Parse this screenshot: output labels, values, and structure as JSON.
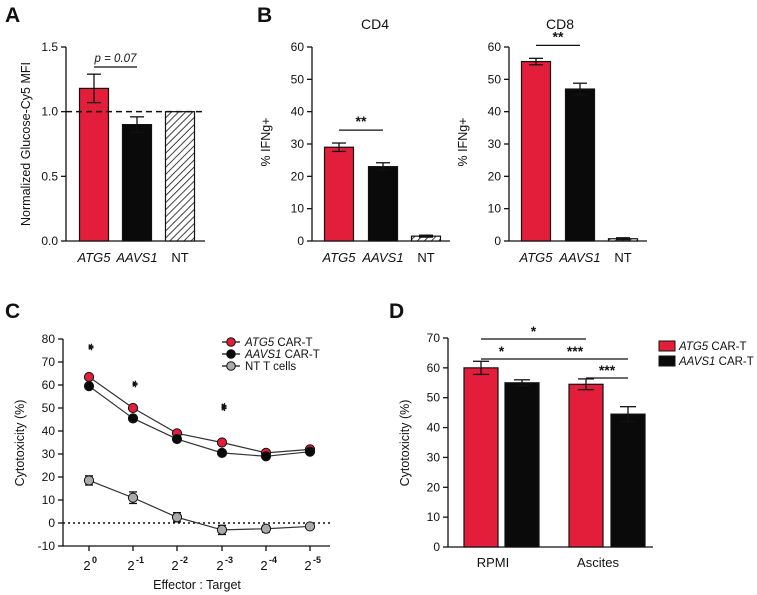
{
  "colors": {
    "atg5": "#e31e3b",
    "aavs1": "#0a0a0a",
    "nt": "#aaaaaa",
    "axis": "#111111"
  },
  "chart_data": [
    {
      "panel": "A",
      "type": "bar",
      "ylabel": "Normalized Glucose-Cy5 MFI",
      "ylim": [
        0.0,
        1.5
      ],
      "yticks": [
        "0.0",
        "0.5",
        "1.0",
        "1.5"
      ],
      "categories": [
        "ATG5",
        "AAVS1",
        "NT"
      ],
      "values": [
        1.18,
        0.9,
        1.0
      ],
      "errors": [
        0.11,
        0.06,
        0.0
      ],
      "reference_line": 1.0,
      "annotation": "p = 0.07"
    },
    {
      "panel": "B",
      "title": "CD4",
      "type": "bar",
      "ylabel": "% IFNg+",
      "ylim": [
        0,
        60
      ],
      "yticks": [
        "0",
        "10",
        "20",
        "30",
        "40",
        "50",
        "60"
      ],
      "categories": [
        "ATG5",
        "AAVS1",
        "NT"
      ],
      "values": [
        29.0,
        23.0,
        1.5
      ],
      "errors": [
        1.3,
        1.2,
        0.3
      ],
      "significance": "**"
    },
    {
      "panel": "B",
      "title": "CD8",
      "type": "bar",
      "ylabel": "% IFNg+",
      "ylim": [
        0,
        60
      ],
      "yticks": [
        "0",
        "10",
        "20",
        "30",
        "40",
        "50",
        "60"
      ],
      "categories": [
        "ATG5",
        "AAVS1",
        "NT"
      ],
      "values": [
        55.5,
        47.0,
        0.7
      ],
      "errors": [
        1.0,
        1.8,
        0.3
      ],
      "significance": "**"
    },
    {
      "panel": "C",
      "type": "line",
      "xlabel": "Effector : Target",
      "ylabel": "Cytotoxicity (%)",
      "ylim": [
        -10,
        80
      ],
      "yticks": [
        "-10",
        "0",
        "10",
        "20",
        "30",
        "40",
        "50",
        "60",
        "70",
        "80"
      ],
      "x_base": "2",
      "x_exponents": [
        "0",
        "-1",
        "-2",
        "-3",
        "-4",
        "-5"
      ],
      "reference_line": 0,
      "series": [
        {
          "name": "ATG5",
          "suffix": " CAR-T",
          "values": [
            63.5,
            50.0,
            39.0,
            35.0,
            30.5,
            32.0
          ],
          "errors": [
            1.0,
            1.0,
            1.0,
            1.0,
            1.0,
            1.0
          ]
        },
        {
          "name": "AAVS1",
          "suffix": " CAR-T",
          "values": [
            59.5,
            45.5,
            36.5,
            30.5,
            29.0,
            31.0
          ],
          "errors": [
            1.0,
            1.0,
            1.0,
            1.0,
            1.0,
            1.0
          ]
        },
        {
          "name": "NT T cells",
          "suffix": "",
          "values": [
            18.5,
            11.0,
            2.5,
            -3.0,
            -2.5,
            -1.5
          ],
          "errors": [
            2.0,
            2.5,
            2.0,
            2.0,
            1.5,
            1.0
          ]
        }
      ],
      "significance": [
        {
          "x_index": 0,
          "label": "**"
        },
        {
          "x_index": 1,
          "label": "**"
        },
        {
          "x_index": 3,
          "label": "***"
        }
      ]
    },
    {
      "panel": "D",
      "type": "bar",
      "ylabel": "Cytotoxicity (%)",
      "ylim": [
        0,
        70
      ],
      "yticks": [
        "0",
        "10",
        "20",
        "30",
        "40",
        "50",
        "60",
        "70"
      ],
      "categories": [
        "RPMI",
        "Ascites"
      ],
      "series": [
        {
          "name": "ATG5",
          "suffix": " CAR-T",
          "values": [
            60.0,
            54.5
          ],
          "errors": [
            2.2,
            1.8
          ]
        },
        {
          "name": "AAVS1",
          "suffix": " CAR-T",
          "values": [
            55.0,
            44.5
          ],
          "errors": [
            1.0,
            2.5
          ]
        }
      ],
      "comparisons": [
        {
          "label": "*"
        },
        {
          "label": "*"
        },
        {
          "label": "***"
        },
        {
          "label": "***"
        }
      ]
    }
  ],
  "panel_letters": [
    "A",
    "B",
    "C",
    "D"
  ]
}
